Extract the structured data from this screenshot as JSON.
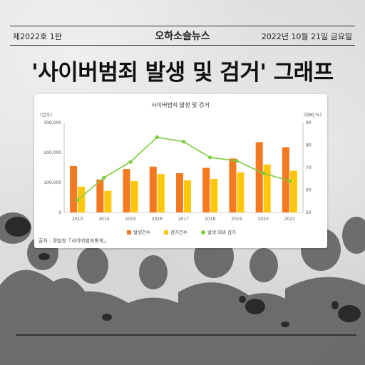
{
  "masthead": {
    "issue": "제2022호 1판",
    "paper_name": "오하소슬뉴스",
    "date": "2022년 10월 21일 금요일"
  },
  "headline": "'사이버범죄 발생 및 검거' 그래프",
  "source": "출처 : 경찰청「사이버범죄통계」",
  "colors": {
    "bar_occurrence": "#f47920",
    "bar_arrest": "#ffc709",
    "line_ratio": "#7dcc3c"
  },
  "chart_data": {
    "type": "bar",
    "title": "사이버범죄 발생 및 검거",
    "left_axis_unit": "(건수)",
    "right_axis_unit": "(대비,%)",
    "categories": [
      "2013",
      "2014",
      "2015",
      "2016",
      "2017",
      "2018",
      "2019",
      "2020",
      "2021"
    ],
    "series": [
      {
        "name": "발생건수",
        "axis": "left",
        "kind": "bar",
        "values": [
          155000,
          110000,
          145000,
          153000,
          131000,
          149000,
          180000,
          235000,
          218000
        ]
      },
      {
        "name": "검거건수",
        "axis": "left",
        "kind": "bar",
        "values": [
          86000,
          72000,
          105000,
          128000,
          107000,
          112000,
          134000,
          160000,
          139000
        ]
      },
      {
        "name": "발생 대비 검거",
        "axis": "right",
        "kind": "line",
        "values": [
          55.5,
          65.5,
          72.5,
          83.5,
          81.5,
          74.5,
          73,
          67.5,
          64
        ]
      }
    ],
    "left_ylim": [
      0,
      300000
    ],
    "left_ticks": [
      "0",
      "100,000",
      "200,000",
      "300,000"
    ],
    "right_ylim": [
      50,
      90
    ],
    "right_ticks": [
      "50",
      "60",
      "70",
      "80",
      "90"
    ],
    "grid": false,
    "legend": "bottom-center"
  }
}
